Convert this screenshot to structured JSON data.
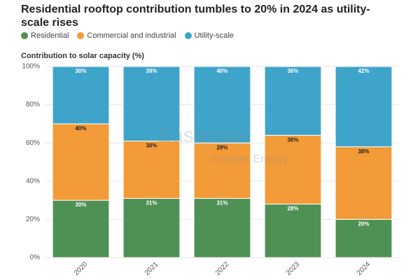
{
  "chart_data": {
    "type": "stacked_bar",
    "title": "Residential rooftop contribution tumbles to 20% in 2024 as utility-scale rises",
    "y_label": "Contribution to solar capacity (%)",
    "categories": [
      "2020",
      "2021",
      "2022",
      "2023",
      "2024"
    ],
    "series": [
      {
        "name": "Residential",
        "color": "#4f9154",
        "values": [
          30,
          31,
          31,
          28,
          20
        ],
        "value_labels": [
          "30%",
          "31%",
          "31%",
          "28%",
          "20%"
        ]
      },
      {
        "name": "Commercial and industrial",
        "color": "#f29b38",
        "values": [
          40,
          30,
          29,
          36,
          38
        ],
        "value_labels": [
          "40%",
          "30%",
          "29%",
          "36%",
          "38%"
        ]
      },
      {
        "name": "Utility-scale",
        "color": "#3fa4ca",
        "values": [
          30,
          39,
          40,
          36,
          42
        ],
        "value_labels": [
          "30%",
          "39%",
          "40%",
          "36%",
          "42%"
        ]
      }
    ],
    "ylim": [
      0,
      100
    ],
    "yticks": [
      {
        "value": 0,
        "label": "0%"
      },
      {
        "value": 20,
        "label": "20%"
      },
      {
        "value": 40,
        "label": "40%"
      },
      {
        "value": 60,
        "label": "60%"
      },
      {
        "value": 80,
        "label": "80%"
      },
      {
        "value": 100,
        "label": "100%"
      }
    ],
    "grid": true,
    "watermark": [
      "Eastensol",
      "Smarter Energy"
    ]
  }
}
